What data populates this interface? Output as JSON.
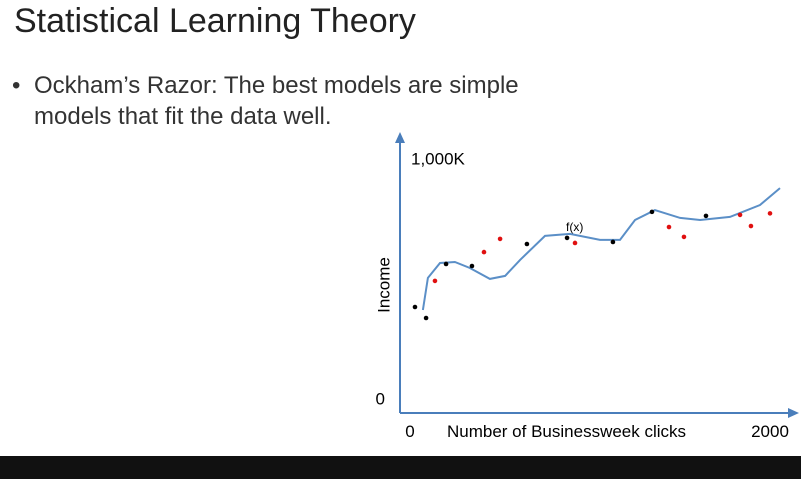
{
  "slide": {
    "title": "Statistical Learning Theory",
    "bullet": "Ockham’s Razor: The best models are simple models that fit the data well."
  },
  "chart_data": {
    "type": "scatter",
    "y_label": "Income",
    "x_label": "Number of Businessweek clicks",
    "annotation": "f(x)",
    "xlim": [
      0,
      2000
    ],
    "ylim": [
      0,
      1000000
    ],
    "xticks": [
      0,
      2000
    ],
    "yticks": [
      {
        "value": 0,
        "label": "0"
      },
      {
        "value": 1000000,
        "label": "1,000K"
      }
    ],
    "series": [
      {
        "color": "#000000",
        "x": [
          81,
          141,
          249,
          389,
          686,
          903,
          1151,
          1362,
          1654
        ],
        "values": [
          419000,
          375500,
          589000,
          581000,
          668000,
          692000,
          676000,
          795000,
          779000
        ]
      },
      {
        "color": "#e01010",
        "x": [
          189,
          454,
          541,
          946,
          1454,
          1535,
          1838,
          1897,
          2000
        ],
        "values": [
          522000,
          636000,
          688000,
          672000,
          735000,
          696000,
          783000,
          739000,
          789000
        ]
      }
    ],
    "curve": {
      "color": "#5b8fc7",
      "x": [
        124,
        151,
        216,
        297,
        378,
        486,
        568,
        649,
        784,
        919,
        1081,
        1189,
        1270,
        1378,
        1514,
        1622,
        1784,
        1946,
        2054
      ],
      "values": [
        407000,
        534000,
        593000,
        597000,
        573000,
        530000,
        542000,
        605000,
        700000,
        708000,
        684000,
        684000,
        763000,
        802000,
        771000,
        763000,
        775000,
        822000,
        889000
      ]
    }
  }
}
